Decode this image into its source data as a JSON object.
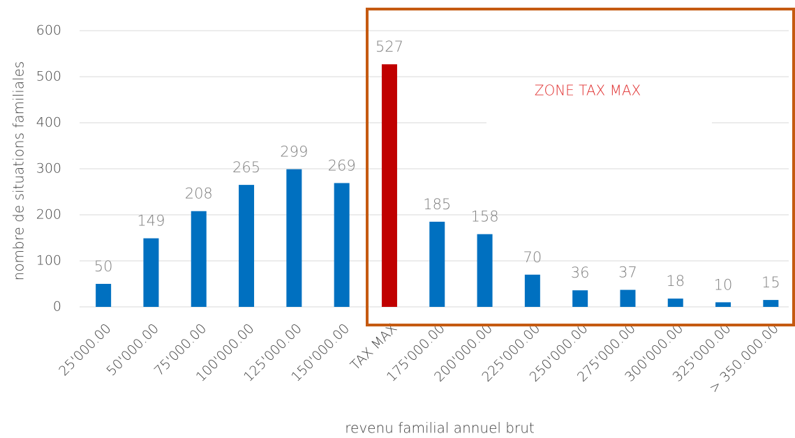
{
  "chart_data": {
    "type": "bar",
    "x_label": "revenu familial annuel brut",
    "y_label": "nombre de situations familiales",
    "annotation": "ZONE TAX MAX",
    "categories": [
      "25'000.00",
      "50'000.00",
      "75'000.00",
      "100'000.00",
      "125'000.00",
      "150'000.00",
      "TAX MAX",
      "175'000.00",
      "200'000.00",
      "225'000.00",
      "250'000.00",
      "275'000.00",
      "300'000.00",
      "325'000.00",
      "> 350.000.00"
    ],
    "values": [
      50,
      149,
      208,
      265,
      299,
      269,
      527,
      185,
      158,
      70,
      36,
      37,
      18,
      10,
      15
    ],
    "colors": [
      "#0070c0",
      "#0070c0",
      "#0070c0",
      "#0070c0",
      "#0070c0",
      "#0070c0",
      "#c00000",
      "#0070c0",
      "#0070c0",
      "#0070c0",
      "#0070c0",
      "#0070c0",
      "#0070c0",
      "#0070c0",
      "#0070c0"
    ],
    "ylim": [
      0,
      600
    ],
    "yticks": [
      0,
      100,
      200,
      300,
      400,
      500,
      600
    ],
    "grid": true
  }
}
